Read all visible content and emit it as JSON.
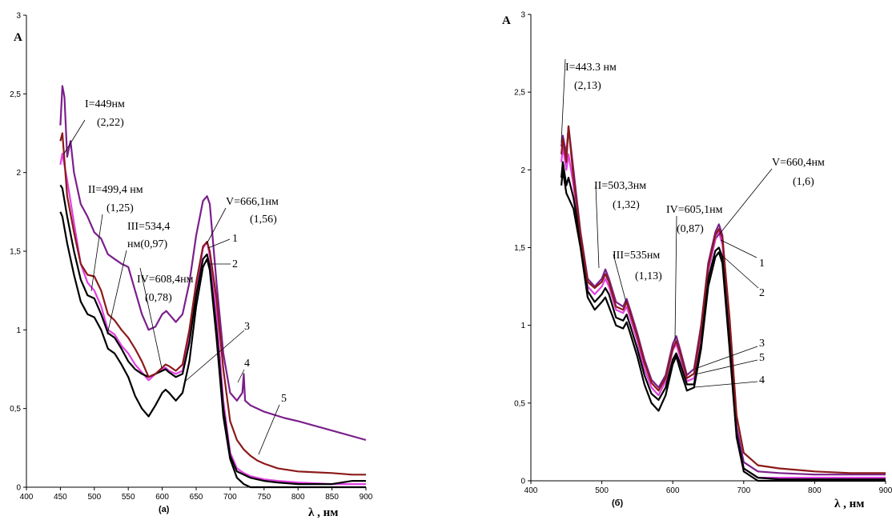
{
  "chart_data": [
    {
      "type": "line",
      "panel_label": "(а)",
      "ylabel": "A",
      "xlabel": "λ , нм",
      "xlim": [
        400,
        900
      ],
      "ylim": [
        0,
        3
      ],
      "xticks": [
        "400",
        "450",
        "500",
        "550",
        "600",
        "650",
        "700",
        "750",
        "800",
        "850",
        "900"
      ],
      "yticks": [
        "0",
        "0,5",
        "1",
        "1,5",
        "2",
        "2,5",
        "3"
      ],
      "grid": false,
      "series": [
        {
          "name": "1",
          "color": "#e040e0",
          "x": [
            450,
            453,
            460,
            470,
            480,
            490,
            500,
            510,
            520,
            530,
            540,
            550,
            560,
            570,
            580,
            590,
            600,
            605,
            610,
            620,
            630,
            640,
            650,
            660,
            666,
            670,
            680,
            690,
            700,
            710,
            720,
            730,
            740,
            750,
            770,
            800,
            850,
            880,
            900
          ],
          "y": [
            2.05,
            2.12,
            1.95,
            1.68,
            1.42,
            1.3,
            1.25,
            1.15,
            1.0,
            0.97,
            0.9,
            0.85,
            0.78,
            0.73,
            0.68,
            0.72,
            0.75,
            0.76,
            0.74,
            0.72,
            0.74,
            0.95,
            1.25,
            1.52,
            1.56,
            1.47,
            1.1,
            0.55,
            0.22,
            0.12,
            0.09,
            0.07,
            0.06,
            0.05,
            0.04,
            0.03,
            0.02,
            0.02,
            0.02
          ]
        },
        {
          "name": "2",
          "color": "#000000",
          "x": [
            450,
            453,
            460,
            470,
            480,
            490,
            500,
            510,
            520,
            530,
            540,
            550,
            560,
            570,
            580,
            590,
            600,
            605,
            610,
            620,
            630,
            640,
            650,
            660,
            666,
            670,
            680,
            690,
            700,
            710,
            720,
            730,
            740,
            750,
            770,
            800,
            850,
            880,
            900
          ],
          "y": [
            1.75,
            1.72,
            1.55,
            1.35,
            1.18,
            1.1,
            1.08,
            1.0,
            0.88,
            0.85,
            0.78,
            0.7,
            0.58,
            0.5,
            0.45,
            0.52,
            0.6,
            0.62,
            0.6,
            0.55,
            0.6,
            0.8,
            1.15,
            1.4,
            1.45,
            1.38,
            0.95,
            0.45,
            0.18,
            0.06,
            0.02,
            0.0,
            0.0,
            0.0,
            0.0,
            0.0,
            0.0,
            0.0,
            0.0
          ]
        },
        {
          "name": "3",
          "color": "#000000",
          "x": [
            450,
            453,
            460,
            470,
            480,
            490,
            500,
            510,
            520,
            530,
            540,
            550,
            560,
            570,
            580,
            590,
            600,
            605,
            610,
            620,
            630,
            640,
            650,
            660,
            666,
            670,
            680,
            690,
            700,
            710,
            720,
            730,
            740,
            750,
            770,
            800,
            850,
            880,
            900
          ],
          "y": [
            1.92,
            1.9,
            1.72,
            1.5,
            1.32,
            1.22,
            1.2,
            1.1,
            0.98,
            0.95,
            0.88,
            0.8,
            0.75,
            0.72,
            0.7,
            0.72,
            0.74,
            0.75,
            0.73,
            0.7,
            0.72,
            0.92,
            1.22,
            1.45,
            1.48,
            1.4,
            1.0,
            0.5,
            0.2,
            0.1,
            0.08,
            0.06,
            0.05,
            0.04,
            0.03,
            0.02,
            0.02,
            0.04,
            0.04
          ]
        },
        {
          "name": "4",
          "color": "#7b1f8c",
          "x": [
            450,
            453,
            456,
            460,
            465,
            470,
            480,
            490,
            500,
            510,
            520,
            530,
            540,
            550,
            560,
            570,
            580,
            590,
            600,
            606,
            610,
            620,
            630,
            640,
            650,
            660,
            666,
            670,
            680,
            690,
            700,
            710,
            718,
            720,
            722,
            730,
            750,
            780,
            800,
            850,
            900
          ],
          "y": [
            2.3,
            2.55,
            2.48,
            2.1,
            2.2,
            2.0,
            1.8,
            1.72,
            1.62,
            1.58,
            1.48,
            1.45,
            1.42,
            1.4,
            1.25,
            1.1,
            1.0,
            1.02,
            1.1,
            1.12,
            1.1,
            1.05,
            1.1,
            1.3,
            1.6,
            1.82,
            1.85,
            1.8,
            1.3,
            0.85,
            0.6,
            0.55,
            0.6,
            0.72,
            0.55,
            0.52,
            0.48,
            0.44,
            0.42,
            0.36,
            0.3
          ]
        },
        {
          "name": "5",
          "color": "#8b1a1a",
          "x": [
            450,
            453,
            460,
            470,
            480,
            490,
            500,
            510,
            520,
            530,
            540,
            550,
            560,
            570,
            580,
            590,
            600,
            605,
            610,
            620,
            630,
            640,
            650,
            660,
            666,
            670,
            680,
            690,
            700,
            710,
            720,
            730,
            740,
            750,
            770,
            800,
            850,
            880,
            900
          ],
          "y": [
            2.2,
            2.25,
            1.85,
            1.62,
            1.42,
            1.35,
            1.34,
            1.25,
            1.1,
            1.06,
            1.0,
            0.95,
            0.88,
            0.8,
            0.7,
            0.72,
            0.76,
            0.78,
            0.77,
            0.74,
            0.78,
            1.0,
            1.3,
            1.53,
            1.56,
            1.5,
            1.2,
            0.75,
            0.42,
            0.3,
            0.24,
            0.2,
            0.17,
            0.15,
            0.12,
            0.1,
            0.09,
            0.08,
            0.08
          ]
        }
      ],
      "annotations": [
        {
          "lines": [
            "I=449нм",
            "(2,22)"
          ]
        },
        {
          "lines": [
            "II=499,4 нм",
            "(1,25)"
          ]
        },
        {
          "lines": [
            "III=534,4",
            "нм(0,97)"
          ]
        },
        {
          "lines": [
            "IV=608,4нм",
            "(0,78)"
          ]
        },
        {
          "lines": [
            "V=666,1нм",
            "(1,56)"
          ]
        }
      ],
      "curve_labels": [
        "1",
        "2",
        "3",
        "4",
        "5"
      ]
    },
    {
      "type": "line",
      "panel_label": "(б)",
      "ylabel": "A",
      "xlabel": "λ , нм",
      "xlim": [
        400,
        900
      ],
      "ylim": [
        0,
        3
      ],
      "xticks": [
        "400",
        "500",
        "600",
        "700",
        "800",
        "900"
      ],
      "yticks": [
        "0",
        "0,5",
        "1",
        "1,5",
        "2",
        "2,5",
        "3"
      ],
      "grid": false,
      "series": [
        {
          "name": "1",
          "color": "#7b1f8c",
          "x": [
            443,
            445,
            450,
            453,
            460,
            470,
            480,
            490,
            500,
            505,
            510,
            520,
            530,
            535,
            540,
            550,
            560,
            570,
            580,
            590,
            600,
            605,
            610,
            620,
            630,
            640,
            650,
            660,
            665,
            670,
            680,
            690,
            700,
            720,
            750,
            800,
            850,
            900
          ],
          "y": [
            2.15,
            2.22,
            2.1,
            2.28,
            2.0,
            1.6,
            1.3,
            1.25,
            1.3,
            1.36,
            1.3,
            1.15,
            1.12,
            1.17,
            1.1,
            0.95,
            0.78,
            0.65,
            0.6,
            0.68,
            0.88,
            0.93,
            0.85,
            0.68,
            0.72,
            1.0,
            1.4,
            1.6,
            1.65,
            1.58,
            1.0,
            0.35,
            0.12,
            0.06,
            0.05,
            0.04,
            0.04,
            0.04
          ]
        },
        {
          "name": "2",
          "color": "#000000",
          "x": [
            443,
            445,
            450,
            453,
            460,
            470,
            480,
            490,
            500,
            505,
            510,
            520,
            530,
            535,
            540,
            550,
            560,
            570,
            580,
            590,
            600,
            605,
            610,
            620,
            630,
            640,
            650,
            660,
            665,
            670,
            680,
            690,
            700,
            720,
            750,
            800,
            850,
            900
          ],
          "y": [
            1.9,
            2.0,
            1.85,
            1.82,
            1.75,
            1.5,
            1.18,
            1.1,
            1.15,
            1.18,
            1.12,
            1.0,
            0.98,
            1.02,
            0.95,
            0.8,
            0.62,
            0.5,
            0.45,
            0.55,
            0.75,
            0.8,
            0.72,
            0.58,
            0.6,
            0.85,
            1.25,
            1.44,
            1.47,
            1.4,
            0.85,
            0.28,
            0.06,
            0.0,
            0.0,
            0.0,
            0.0,
            0.0
          ]
        },
        {
          "name": "3",
          "color": "#e040e0",
          "x": [
            443,
            445,
            450,
            453,
            460,
            470,
            480,
            490,
            500,
            505,
            510,
            520,
            530,
            535,
            540,
            550,
            560,
            570,
            580,
            590,
            600,
            605,
            610,
            620,
            630,
            640,
            650,
            660,
            665,
            670,
            680,
            690,
            700,
            720,
            750,
            800,
            850,
            900
          ],
          "y": [
            2.05,
            2.15,
            2.0,
            2.1,
            1.9,
            1.55,
            1.25,
            1.2,
            1.25,
            1.3,
            1.25,
            1.1,
            1.08,
            1.12,
            1.05,
            0.9,
            0.72,
            0.6,
            0.55,
            0.64,
            0.84,
            0.88,
            0.8,
            0.64,
            0.66,
            0.95,
            1.35,
            1.55,
            1.6,
            1.52,
            0.92,
            0.3,
            0.08,
            0.02,
            0.02,
            0.02,
            0.02,
            0.02
          ]
        },
        {
          "name": "4",
          "color": "#000000",
          "x": [
            443,
            445,
            450,
            453,
            460,
            470,
            480,
            490,
            500,
            505,
            510,
            520,
            530,
            535,
            540,
            550,
            560,
            570,
            580,
            590,
            600,
            605,
            610,
            620,
            630,
            640,
            650,
            660,
            665,
            670,
            680,
            690,
            700,
            720,
            750,
            800,
            850,
            900
          ],
          "y": [
            1.95,
            2.05,
            1.9,
            1.95,
            1.82,
            1.55,
            1.22,
            1.15,
            1.2,
            1.24,
            1.2,
            1.05,
            1.03,
            1.07,
            1.0,
            0.85,
            0.68,
            0.56,
            0.52,
            0.6,
            0.78,
            0.82,
            0.76,
            0.62,
            0.62,
            0.88,
            1.3,
            1.48,
            1.5,
            1.44,
            0.9,
            0.3,
            0.08,
            0.02,
            0.01,
            0.01,
            0.01,
            0.01
          ]
        },
        {
          "name": "5",
          "color": "#8b1a1a",
          "x": [
            443,
            445,
            450,
            453,
            460,
            470,
            480,
            490,
            500,
            505,
            510,
            520,
            530,
            535,
            540,
            550,
            560,
            570,
            580,
            590,
            600,
            605,
            610,
            620,
            630,
            640,
            650,
            660,
            665,
            670,
            680,
            690,
            700,
            720,
            750,
            800,
            850,
            900
          ],
          "y": [
            2.1,
            2.2,
            2.05,
            2.28,
            1.95,
            1.58,
            1.28,
            1.24,
            1.28,
            1.33,
            1.28,
            1.12,
            1.1,
            1.15,
            1.08,
            0.93,
            0.76,
            0.63,
            0.58,
            0.66,
            0.85,
            0.9,
            0.83,
            0.66,
            0.69,
            0.98,
            1.38,
            1.58,
            1.62,
            1.56,
            1.05,
            0.42,
            0.18,
            0.1,
            0.08,
            0.06,
            0.05,
            0.05
          ]
        }
      ],
      "annotations": [
        {
          "lines": [
            "I=443.3 нм",
            "(2,13)"
          ]
        },
        {
          "lines": [
            "II=503,3нм",
            "(1,32)"
          ]
        },
        {
          "lines": [
            "III=535нм",
            "(1,13)"
          ]
        },
        {
          "lines": [
            "IV=605,1нм",
            "(0,87)"
          ]
        },
        {
          "lines": [
            "V=660,4нм",
            "(1,6)"
          ]
        }
      ],
      "curve_labels": [
        "1",
        "2",
        "3",
        "5",
        "4"
      ]
    }
  ]
}
